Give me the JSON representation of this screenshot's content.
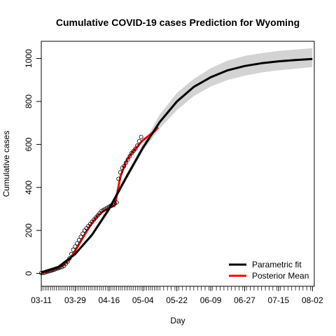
{
  "chart_data": {
    "type": "line",
    "title": "Cumulative COVID-19 cases Prediction for Wyoming",
    "xlabel": "Day",
    "ylabel": "Cumulative cases",
    "x_ticks": [
      "03-11",
      "03-29",
      "04-16",
      "05-04",
      "05-22",
      "06-09",
      "06-27",
      "07-15",
      "08-02"
    ],
    "y_ticks": [
      0,
      200,
      400,
      600,
      800,
      1000
    ],
    "ylim": [
      -60,
      1080
    ],
    "xlim": [
      0,
      145
    ],
    "legend": {
      "position": "bottom-right",
      "entries": [
        {
          "name": "Parametric fit",
          "color": "#000000"
        },
        {
          "name": "Posterior Mean",
          "color": "#ff0000"
        }
      ]
    },
    "series": [
      {
        "name": "Parametric fit",
        "color": "#000000",
        "x": [
          0,
          9,
          18,
          27,
          36,
          45,
          54,
          63,
          72,
          81,
          90,
          99,
          108,
          117,
          126,
          135,
          144
        ],
        "values": [
          5,
          30,
          90,
          180,
          300,
          445,
          585,
          705,
          800,
          868,
          913,
          945,
          965,
          978,
          987,
          993,
          998
        ]
      },
      {
        "name": "Posterior Mean",
        "color": "#ff0000",
        "x": [
          0,
          3,
          6,
          9,
          12,
          15,
          18,
          21,
          24,
          27,
          30,
          33,
          36,
          39,
          42,
          45,
          48,
          51,
          54,
          57,
          60,
          62
        ],
        "values": [
          3,
          8,
          15,
          25,
          40,
          65,
          105,
          150,
          195,
          235,
          270,
          290,
          305,
          315,
          450,
          520,
          560,
          590,
          620,
          640,
          660,
          680
        ]
      }
    ],
    "band": {
      "color": "#d3d3d3",
      "x": [
        0,
        9,
        18,
        27,
        36,
        45,
        54,
        63,
        72,
        81,
        90,
        99,
        108,
        117,
        126,
        135,
        144
      ],
      "lower": [
        5,
        30,
        85,
        170,
        285,
        430,
        570,
        675,
        760,
        825,
        870,
        900,
        920,
        935,
        945,
        952,
        960
      ],
      "upper": [
        5,
        32,
        95,
        190,
        315,
        460,
        600,
        740,
        840,
        905,
        955,
        990,
        1012,
        1025,
        1035,
        1042,
        1048
      ]
    },
    "observed_points": {
      "marker": "open-circle",
      "x": [
        0,
        1,
        2,
        3,
        4,
        5,
        6,
        7,
        8,
        9,
        10,
        11,
        12,
        13,
        14,
        15,
        16,
        17,
        18,
        19,
        20,
        21,
        22,
        23,
        24,
        25,
        26,
        27,
        28,
        29,
        30,
        31,
        32,
        33,
        34,
        35,
        36,
        37,
        38,
        39,
        40,
        41,
        42,
        43,
        44,
        45,
        46,
        47,
        48,
        49,
        50,
        51,
        52,
        53
      ],
      "values": [
        2,
        3,
        4,
        8,
        10,
        12,
        15,
        18,
        22,
        24,
        28,
        30,
        35,
        45,
        55,
        70,
        90,
        110,
        125,
        140,
        155,
        170,
        185,
        200,
        210,
        220,
        230,
        240,
        250,
        260,
        270,
        280,
        290,
        295,
        300,
        305,
        310,
        315,
        320,
        325,
        330,
        440,
        470,
        490,
        500,
        515,
        530,
        545,
        560,
        570,
        580,
        595,
        615,
        635
      ]
    }
  }
}
